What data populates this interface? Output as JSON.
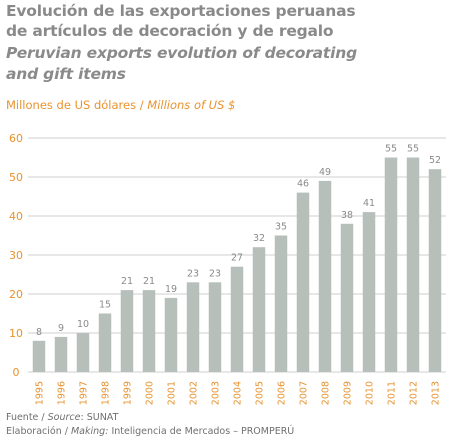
{
  "title": {
    "es_line1": "Evolución de las exportaciones peruanas",
    "es_line2": "de artículos de decoración y de regalo",
    "en_line1": "Peruvian exports evolution of decorating",
    "en_line2": "and gift items"
  },
  "units": {
    "es": "Millones de US dólares /",
    "en": "Millions of US $"
  },
  "footer": {
    "source_es": "Fuente /",
    "source_en": "Source",
    "source_value": ": SUNAT",
    "making_es": "Elaboración /",
    "making_en": "Making:",
    "making_value": "Inteligencia de Mercados – PROMPERÚ"
  },
  "colors": {
    "bar": "#b7bfbb",
    "accent": "#e8922e",
    "grid": "#cfcfcf",
    "text": "#8a8a8a"
  },
  "chart_data": {
    "type": "bar",
    "title": "Evolución de las exportaciones peruanas de artículos de decoración y de regalo / Peruvian exports evolution of decorating and gift items",
    "ylabel": "Millones de US dólares / Millions of US $",
    "categories": [
      "1995",
      "1996",
      "1997",
      "1998",
      "1999",
      "2000",
      "2001",
      "2002",
      "2003",
      "2004",
      "2005",
      "2006",
      "2007",
      "2008",
      "2009",
      "2010",
      "2011",
      "2012",
      "2013"
    ],
    "values": [
      8,
      9,
      10,
      15,
      21,
      21,
      19,
      23,
      23,
      27,
      32,
      35,
      46,
      49,
      38,
      41,
      55,
      55,
      52
    ],
    "ylim": [
      0,
      60
    ],
    "yticks": [
      0,
      10,
      20,
      30,
      40,
      50,
      60
    ],
    "grid": true,
    "data_labels": true
  }
}
